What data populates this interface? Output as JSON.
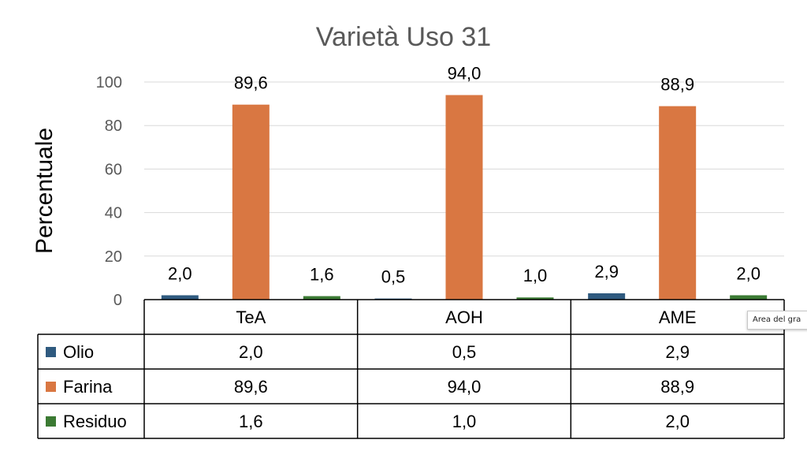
{
  "chart_data": {
    "type": "bar",
    "title": "Varietà Uso 31",
    "ylabel": "Percentuale",
    "xlabel": "",
    "ylim": [
      0,
      100
    ],
    "yticks": [
      0,
      20,
      40,
      60,
      80,
      100
    ],
    "ytick_labels": [
      "0",
      "20",
      "40",
      "60",
      "80",
      "100"
    ],
    "grid": true,
    "legend": "data-table",
    "categories": [
      "TeA",
      "AOH",
      "AME"
    ],
    "series": [
      {
        "name": "Olio",
        "color": "#2f5a7f",
        "values": [
          2.0,
          0.5,
          2.9
        ],
        "labels": [
          "2,0",
          "0,5",
          "2,9"
        ]
      },
      {
        "name": "Farina",
        "color": "#d97742",
        "values": [
          89.6,
          94.0,
          88.9
        ],
        "labels": [
          "89,6",
          "94,0",
          "88,9"
        ]
      },
      {
        "name": "Residuo",
        "color": "#3b7a33",
        "values": [
          1.6,
          1.0,
          2.0
        ],
        "labels": [
          "1,6",
          "1,0",
          "2,0"
        ]
      }
    ]
  },
  "tooltip": {
    "text": "Area del gra"
  }
}
